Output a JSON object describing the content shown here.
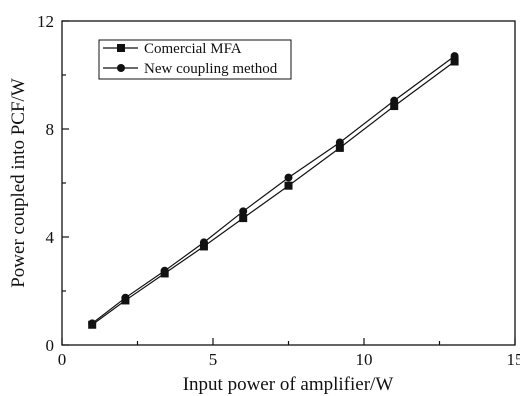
{
  "chart_data": {
    "type": "line",
    "xlabel": "Input power of amplifier/W",
    "ylabel": "Power coupled into PCF/W",
    "xlim": [
      0,
      15
    ],
    "ylim": [
      0,
      12
    ],
    "x_ticks": [
      0,
      5,
      10,
      15
    ],
    "y_ticks": [
      0,
      4,
      8,
      12
    ],
    "grid": false,
    "legend_position": "top-left",
    "series": [
      {
        "name": "Comercial MFA",
        "marker": "square",
        "color": "#111111",
        "x": [
          1.0,
          2.1,
          3.4,
          4.7,
          6.0,
          7.5,
          9.2,
          11.0,
          13.0
        ],
        "y": [
          0.75,
          1.65,
          2.65,
          3.65,
          4.7,
          5.9,
          7.3,
          8.85,
          10.5
        ]
      },
      {
        "name": "New coupling method",
        "marker": "circle",
        "color": "#111111",
        "x": [
          1.0,
          2.1,
          3.4,
          4.7,
          6.0,
          7.5,
          9.2,
          11.0,
          13.0
        ],
        "y": [
          0.8,
          1.75,
          2.75,
          3.8,
          4.95,
          6.2,
          7.5,
          9.05,
          10.7
        ]
      }
    ]
  }
}
